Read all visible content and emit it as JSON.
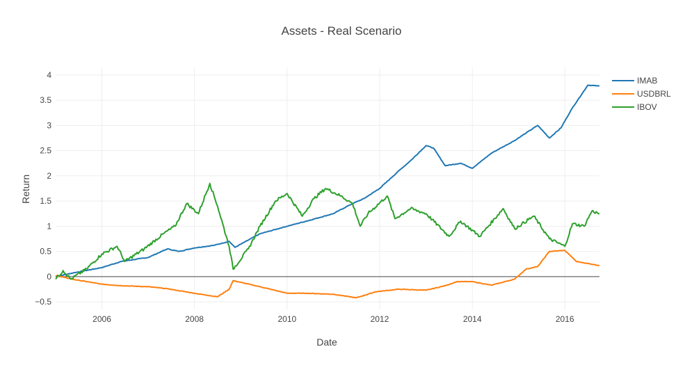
{
  "chart_data": {
    "type": "line",
    "title": "Assets - Real Scenario",
    "xlabel": "Date",
    "ylabel": "Return",
    "xlim": [
      "2005-01-01",
      "2016-09-30"
    ],
    "ylim": [
      -0.65,
      4.15
    ],
    "x_ticks": [
      "2006",
      "2008",
      "2010",
      "2012",
      "2014",
      "2016"
    ],
    "y_ticks": [
      -0.5,
      0,
      0.5,
      1,
      1.5,
      2,
      2.5,
      3,
      3.5,
      4
    ],
    "y_tick_labels": [
      "−0.5",
      "0",
      "0.5",
      "1",
      "1.5",
      "2",
      "2.5",
      "3",
      "3.5",
      "4"
    ],
    "grid": true,
    "legend_position": "top-right",
    "series": [
      {
        "name": "IMAB",
        "color": "#1f77b4",
        "points": [
          [
            "2005-01-01",
            0.0
          ],
          [
            "2005-06-01",
            0.08
          ],
          [
            "2006-01-01",
            0.18
          ],
          [
            "2006-06-01",
            0.3
          ],
          [
            "2007-01-01",
            0.38
          ],
          [
            "2007-06-01",
            0.55
          ],
          [
            "2007-09-01",
            0.5
          ],
          [
            "2008-01-01",
            0.57
          ],
          [
            "2008-06-01",
            0.62
          ],
          [
            "2008-10-01",
            0.7
          ],
          [
            "2008-11-15",
            0.58
          ],
          [
            "2009-06-01",
            0.85
          ],
          [
            "2010-01-01",
            1.0
          ],
          [
            "2010-06-01",
            1.1
          ],
          [
            "2011-01-01",
            1.25
          ],
          [
            "2011-06-01",
            1.45
          ],
          [
            "2011-09-01",
            1.55
          ],
          [
            "2012-01-01",
            1.75
          ],
          [
            "2012-06-01",
            2.1
          ],
          [
            "2012-09-01",
            2.3
          ],
          [
            "2013-01-01",
            2.6
          ],
          [
            "2013-03-01",
            2.55
          ],
          [
            "2013-06-01",
            2.2
          ],
          [
            "2013-10-01",
            2.25
          ],
          [
            "2014-01-01",
            2.15
          ],
          [
            "2014-06-01",
            2.45
          ],
          [
            "2014-12-01",
            2.7
          ],
          [
            "2015-03-01",
            2.85
          ],
          [
            "2015-06-01",
            3.0
          ],
          [
            "2015-09-01",
            2.75
          ],
          [
            "2015-12-01",
            2.95
          ],
          [
            "2016-03-01",
            3.35
          ],
          [
            "2016-07-01",
            3.8
          ],
          [
            "2016-09-30",
            3.78
          ]
        ]
      },
      {
        "name": "USDBRL",
        "color": "#ff7f0e",
        "points": [
          [
            "2005-01-01",
            0.02
          ],
          [
            "2005-06-01",
            -0.06
          ],
          [
            "2006-01-01",
            -0.15
          ],
          [
            "2006-06-01",
            -0.18
          ],
          [
            "2007-01-01",
            -0.2
          ],
          [
            "2007-06-01",
            -0.24
          ],
          [
            "2008-01-01",
            -0.33
          ],
          [
            "2008-07-01",
            -0.4
          ],
          [
            "2008-10-01",
            -0.25
          ],
          [
            "2008-11-01",
            -0.08
          ],
          [
            "2009-06-01",
            -0.2
          ],
          [
            "2010-01-01",
            -0.33
          ],
          [
            "2010-06-01",
            -0.33
          ],
          [
            "2011-01-01",
            -0.35
          ],
          [
            "2011-07-01",
            -0.42
          ],
          [
            "2011-12-01",
            -0.3
          ],
          [
            "2012-06-01",
            -0.25
          ],
          [
            "2013-01-01",
            -0.27
          ],
          [
            "2013-06-01",
            -0.18
          ],
          [
            "2013-09-01",
            -0.1
          ],
          [
            "2014-01-01",
            -0.1
          ],
          [
            "2014-06-01",
            -0.17
          ],
          [
            "2014-12-01",
            -0.05
          ],
          [
            "2015-03-01",
            0.15
          ],
          [
            "2015-06-01",
            0.2
          ],
          [
            "2015-09-01",
            0.5
          ],
          [
            "2016-01-01",
            0.52
          ],
          [
            "2016-04-01",
            0.3
          ],
          [
            "2016-09-30",
            0.22
          ]
        ]
      },
      {
        "name": "IBOV",
        "color": "#2ca02c",
        "points": [
          [
            "2005-01-01",
            -0.05
          ],
          [
            "2005-03-01",
            0.12
          ],
          [
            "2005-05-01",
            -0.05
          ],
          [
            "2005-09-01",
            0.15
          ],
          [
            "2006-01-01",
            0.45
          ],
          [
            "2006-05-01",
            0.6
          ],
          [
            "2006-07-01",
            0.3
          ],
          [
            "2006-12-01",
            0.55
          ],
          [
            "2007-05-01",
            0.85
          ],
          [
            "2007-08-01",
            1.0
          ],
          [
            "2007-11-01",
            1.45
          ],
          [
            "2008-02-01",
            1.25
          ],
          [
            "2008-05-01",
            1.85
          ],
          [
            "2008-07-01",
            1.4
          ],
          [
            "2008-10-01",
            0.6
          ],
          [
            "2008-11-01",
            0.15
          ],
          [
            "2009-03-01",
            0.55
          ],
          [
            "2009-06-01",
            1.0
          ],
          [
            "2009-10-01",
            1.5
          ],
          [
            "2010-01-01",
            1.65
          ],
          [
            "2010-05-01",
            1.2
          ],
          [
            "2010-08-01",
            1.55
          ],
          [
            "2010-11-01",
            1.75
          ],
          [
            "2011-03-01",
            1.6
          ],
          [
            "2011-06-01",
            1.45
          ],
          [
            "2011-08-01",
            1.0
          ],
          [
            "2011-10-01",
            1.25
          ],
          [
            "2012-03-01",
            1.6
          ],
          [
            "2012-05-01",
            1.15
          ],
          [
            "2012-09-01",
            1.35
          ],
          [
            "2013-01-01",
            1.25
          ],
          [
            "2013-07-01",
            0.8
          ],
          [
            "2013-10-01",
            1.1
          ],
          [
            "2014-03-01",
            0.8
          ],
          [
            "2014-09-01",
            1.35
          ],
          [
            "2014-12-01",
            0.95
          ],
          [
            "2015-05-01",
            1.2
          ],
          [
            "2015-09-01",
            0.75
          ],
          [
            "2016-01-01",
            0.6
          ],
          [
            "2016-03-01",
            1.05
          ],
          [
            "2016-06-01",
            1.0
          ],
          [
            "2016-08-01",
            1.3
          ],
          [
            "2016-09-30",
            1.25
          ]
        ]
      }
    ]
  }
}
